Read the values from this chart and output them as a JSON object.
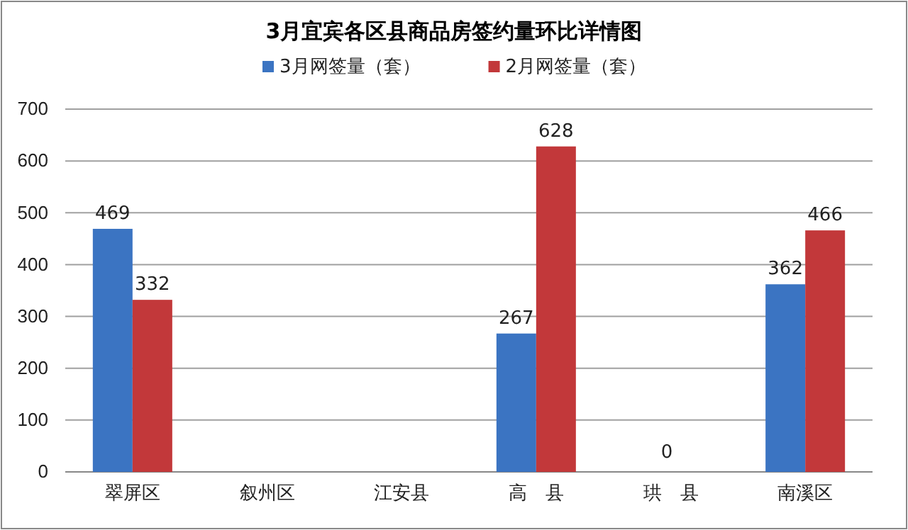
{
  "chart_data": {
    "type": "bar",
    "title": "3月宜宾各区县商品房签约量环比详情图",
    "categories": [
      "翠屏区",
      "叙州区",
      "江安县",
      "高　县",
      "珙　县",
      "南溪区"
    ],
    "series": [
      {
        "name": "3月网签量（套）",
        "color": "#3b74c2",
        "values": [
          469,
          null,
          null,
          267,
          null,
          362
        ],
        "value_labels": [
          "469",
          null,
          null,
          "267",
          null,
          "362"
        ]
      },
      {
        "name": "2月网签量（套）",
        "color": "#c2383a",
        "values": [
          332,
          null,
          null,
          628,
          null,
          466
        ],
        "value_labels": [
          "332",
          null,
          null,
          "628",
          null,
          "466"
        ]
      }
    ],
    "annotations": [
      "0"
    ],
    "ylim": [
      0,
      700
    ],
    "yticks": [
      0,
      100,
      200,
      300,
      400,
      500,
      600,
      700
    ],
    "grid": "y",
    "legend": "top"
  }
}
